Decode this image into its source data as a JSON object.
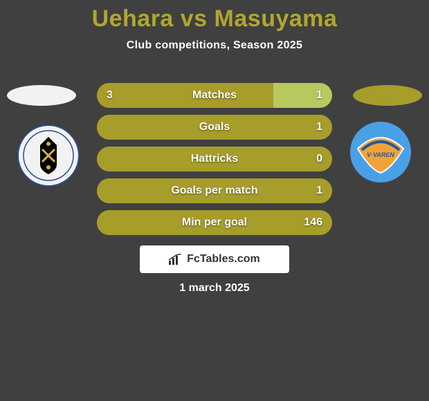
{
  "header": {
    "title": "Uehara vs Masuyama",
    "title_color": "#b0a62f",
    "subtitle": "Club competitions, Season 2025",
    "subtitle_color": "#ffffff"
  },
  "background_color": "#404040",
  "left_team": {
    "ellipse_color": "#f2f2f2",
    "badge_bg": "#f2f2f2",
    "badge_accent": "#2a4a8a",
    "badge_accent2": "#000000"
  },
  "right_team": {
    "ellipse_color": "#a79d2a",
    "badge_bg": "#4aa0e6",
    "badge_accent": "#f3a23a",
    "badge_accent2": "#ffffff"
  },
  "bars": {
    "left_color": "#a79d2a",
    "right_color": "#b7c95e",
    "bg_color": "#a79d2a",
    "text_color": "#ffffff",
    "rows": [
      {
        "left_val": "3",
        "label": "Matches",
        "right_val": "1",
        "left_pct": 75,
        "right_pct": 25
      },
      {
        "left_val": "",
        "label": "Goals",
        "right_val": "1",
        "left_pct": 100,
        "right_pct": 0
      },
      {
        "left_val": "",
        "label": "Hattricks",
        "right_val": "0",
        "left_pct": 100,
        "right_pct": 0
      },
      {
        "left_val": "",
        "label": "Goals per match",
        "right_val": "1",
        "left_pct": 100,
        "right_pct": 0
      },
      {
        "left_val": "",
        "label": "Min per goal",
        "right_val": "146",
        "left_pct": 100,
        "right_pct": 0
      }
    ]
  },
  "logo": {
    "text": "FcTables.com",
    "bg": "#ffffff"
  },
  "date": "1 march 2025"
}
